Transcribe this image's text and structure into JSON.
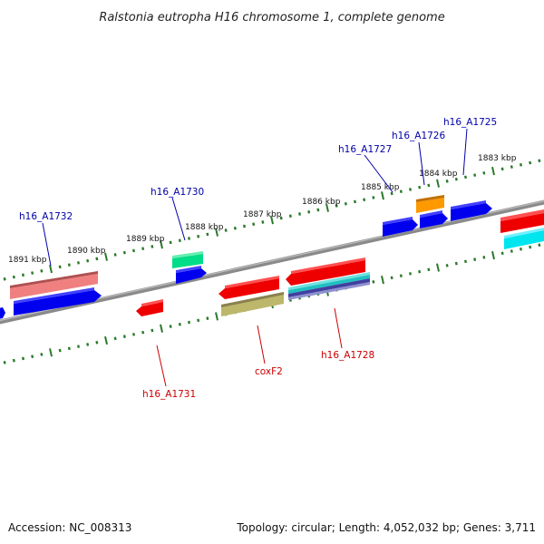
{
  "title": "Ralstonia eutropha H16 chromosome 1, complete genome",
  "footer": {
    "accession": "Accession: NC_008313",
    "topology": "Topology: circular; Length: 4,052,032 bp; Genes: 3,711"
  },
  "colors": {
    "backbone": "#808080",
    "tick": "#2a7a2a",
    "label_top": "#0000aa",
    "label_bottom": "#cc0000"
  },
  "kbp_labels": [
    "1883 kbp",
    "1884 kbp",
    "1885 kbp",
    "1886 kbp",
    "1887 kbp",
    "1888 kbp",
    "1889 kbp",
    "1890 kbp",
    "1891 kbp"
  ],
  "gene_labels_top": [
    "h16_A1725",
    "h16_A1726",
    "h16_A1727",
    "h16_A1730",
    "h16_A1732"
  ],
  "gene_labels_bottom": [
    "h16_A1728",
    "coxF2",
    "h16_A1731"
  ]
}
